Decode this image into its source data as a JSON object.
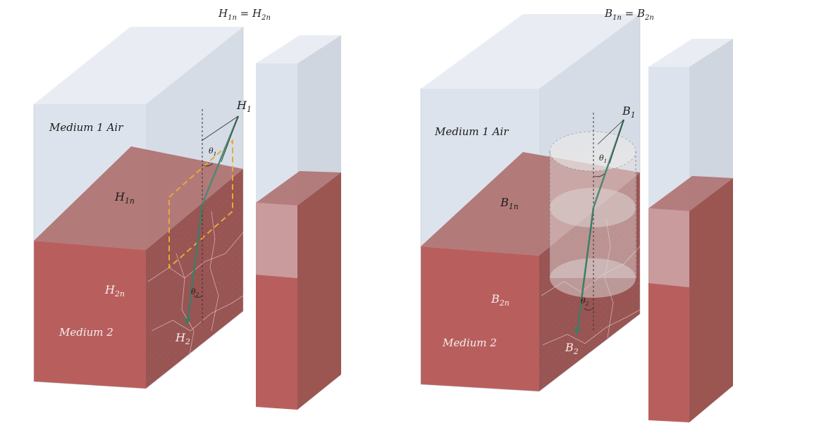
{
  "equations": {
    "h_base": "H",
    "h_sub1": "1n",
    "h_eq": " = ",
    "h_base2": "H",
    "h_sub2": "2n",
    "b_base": "B",
    "b_sub1": "1n",
    "b_eq": " = ",
    "b_base2": "B",
    "b_sub2": "2n"
  },
  "left_panel": {
    "medium1": "Medium 1 Air",
    "medium2": "Medium 2",
    "h1_base": "H",
    "h1_sub": "1",
    "h1n_base": "H",
    "h1n_sub": "1n",
    "h2n_base": "H",
    "h2n_sub": "2n",
    "h2_base": "H",
    "h2_sub": "2",
    "theta1_base": "θ",
    "theta1_sub": "1",
    "theta2_base": "θ",
    "theta2_sub": "2"
  },
  "right_panel": {
    "medium1": "Medium 1 Air",
    "medium2": "Medium 2",
    "b1_base": "B",
    "b1_sub": "1",
    "b1n_base": "B",
    "b1n_sub": "1n",
    "b2n_base": "B",
    "b2n_sub": "2n",
    "b2_base": "B",
    "b2_sub": "2",
    "theta1_base": "θ",
    "theta1_sub": "1",
    "theta2_base": "θ",
    "theta2_sub": "2"
  },
  "colors": {
    "air_front": "#dde3ec",
    "air_top": "#e9edf3",
    "air_side": "#cfd6e0",
    "medium_front": "#b85f5e",
    "medium_side": "#9b5652",
    "medium_top": "#ae6c6a",
    "vector": "#4b8a74",
    "pillbox": "#d9d2d2",
    "gauss_loop": "#e8a93a"
  }
}
